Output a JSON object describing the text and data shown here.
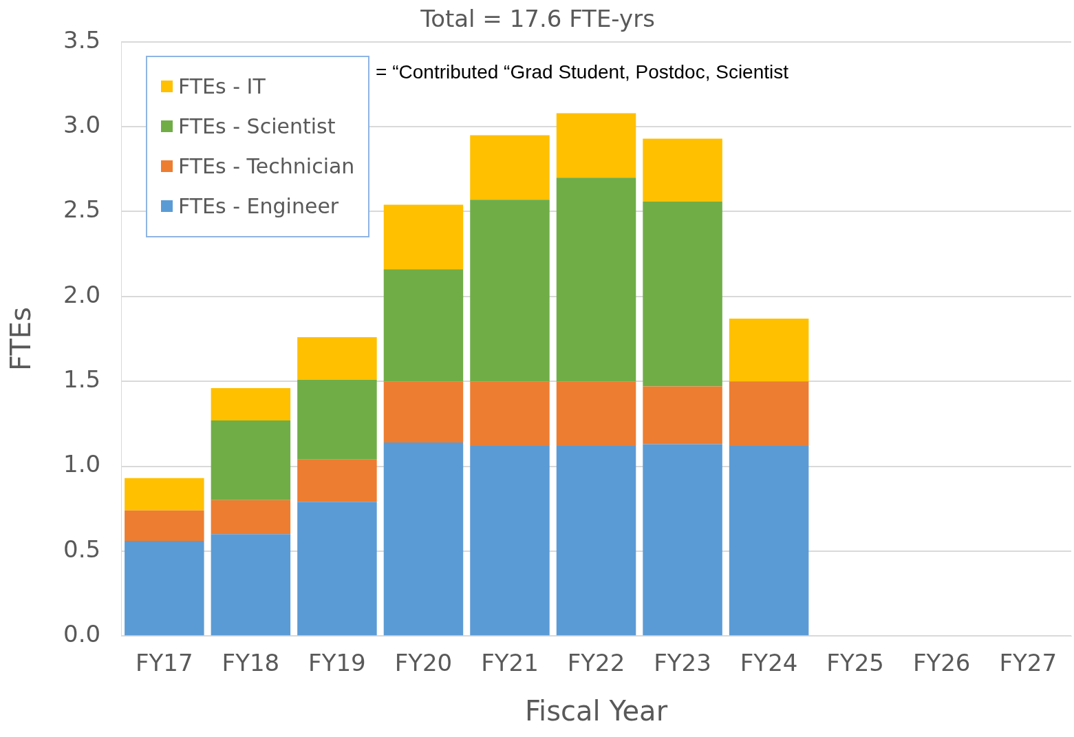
{
  "chart_data": {
    "type": "bar",
    "title": "Total = 17.6 FTE-yrs",
    "xlabel": "Fiscal Year",
    "ylabel": "FTEs",
    "stacked": true,
    "categories": [
      "FY17",
      "FY18",
      "FY19",
      "FY20",
      "FY21",
      "FY22",
      "FY23",
      "FY24",
      "FY25",
      "FY26",
      "FY27"
    ],
    "series": [
      {
        "name": "FTEs - Engineer",
        "color": "#5b9bd5",
        "values": [
          0.56,
          0.6,
          0.79,
          1.14,
          1.12,
          1.12,
          1.13,
          1.12,
          null,
          null,
          null
        ]
      },
      {
        "name": "FTEs - Technician",
        "color": "#ed7d31",
        "values": [
          0.18,
          0.2,
          0.25,
          0.36,
          0.38,
          0.38,
          0.34,
          0.38,
          null,
          null,
          null
        ]
      },
      {
        "name": "FTEs - Scientist",
        "color": "#70ad47",
        "values": [
          0,
          0.47,
          0.47,
          0.66,
          1.07,
          1.2,
          1.09,
          0,
          null,
          null,
          null
        ]
      },
      {
        "name": "FTEs - IT",
        "color": "#ffc000",
        "values": [
          0.19,
          0.19,
          0.25,
          0.38,
          0.38,
          0.38,
          0.37,
          0.37,
          null,
          null,
          null
        ]
      }
    ],
    "ylim": [
      0,
      3.5
    ],
    "yticks": [
      {
        "value": 0,
        "label": "0.0"
      },
      {
        "value": 0.5,
        "label": "0.5"
      },
      {
        "value": 1,
        "label": "1.0"
      },
      {
        "value": 1.5,
        "label": "1.5"
      },
      {
        "value": 2,
        "label": "2.0"
      },
      {
        "value": 2.5,
        "label": "2.5"
      },
      {
        "value": 3,
        "label": "3.0"
      },
      {
        "value": 3.5,
        "label": "3.5"
      }
    ],
    "grid": "y",
    "legend": "top left",
    "annotations": [
      "= “Contributed “Grad Student, Postdoc, Scientist"
    ]
  }
}
